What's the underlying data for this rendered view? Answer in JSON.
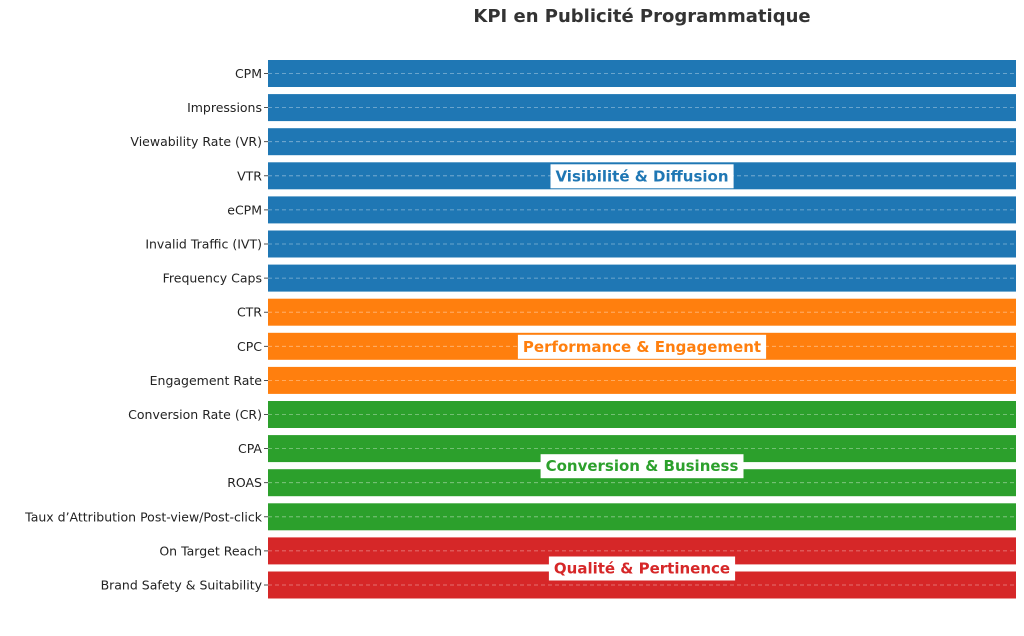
{
  "chart_data": {
    "type": "bar",
    "orientation": "horizontal",
    "title": "KPI en Publicité Programmatique",
    "xlabel": "",
    "ylabel": "",
    "xlim": [
      0,
      1
    ],
    "grid": "on",
    "categories": [
      "CPM",
      "Impressions",
      "Viewability Rate (VR)",
      "VTR",
      "eCPM",
      "Invalid Traffic (IVT)",
      "Frequency Caps",
      "CTR",
      "CPC",
      "Engagement Rate",
      "Conversion Rate (CR)",
      "CPA",
      "ROAS",
      "Taux d’Attribution Post-view/Post-click",
      "On Target Reach",
      "Brand Safety & Suitability"
    ],
    "values": [
      1,
      1,
      1,
      1,
      1,
      1,
      1,
      1,
      1,
      1,
      1,
      1,
      1,
      1,
      1,
      1
    ],
    "groups": [
      {
        "label": "Visibilité & Diffusion",
        "color": "#1f77b4",
        "start": 0,
        "end": 6
      },
      {
        "label": "Performance & Engagement",
        "color": "#ff7f0e",
        "start": 7,
        "end": 9
      },
      {
        "label": "Conversion & Business",
        "color": "#2ca02c",
        "start": 10,
        "end": 13
      },
      {
        "label": "Qualité & Pertinence",
        "color": "#d62728",
        "start": 14,
        "end": 15
      }
    ]
  }
}
